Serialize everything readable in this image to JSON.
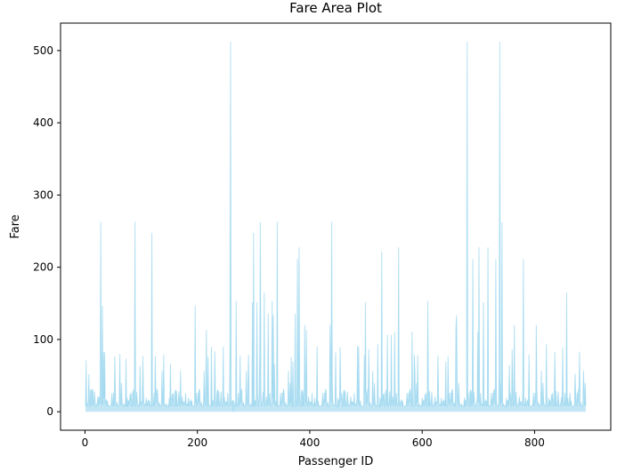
{
  "chart_data": {
    "type": "area",
    "title": "Fare Area Plot",
    "xlabel": "Passenger ID",
    "ylabel": "Fare",
    "xlim": [
      -43.5,
      935.5
    ],
    "ylim": [
      -25.6,
      538.0
    ],
    "xticks": [
      0,
      200,
      400,
      600,
      800
    ],
    "yticks": [
      0,
      100,
      200,
      300,
      400,
      500
    ],
    "grid": false,
    "legend": "none",
    "fill_color": "#87CEEB",
    "fill_opacity": 0.5,
    "x_range": [
      1,
      891
    ],
    "peaks": [
      {
        "x": 1,
        "y": 7.25
      },
      {
        "x": 2,
        "y": 71.28
      },
      {
        "x": 5,
        "y": 8.05
      },
      {
        "x": 7,
        "y": 51.86
      },
      {
        "x": 10,
        "y": 30.07
      },
      {
        "x": 14,
        "y": 31.28
      },
      {
        "x": 20,
        "y": 7.23
      },
      {
        "x": 25,
        "y": 21.08
      },
      {
        "x": 28,
        "y": 263.0
      },
      {
        "x": 31,
        "y": 146.52
      },
      {
        "x": 33,
        "y": 82.17
      },
      {
        "x": 35,
        "y": 82.17
      },
      {
        "x": 43,
        "y": 7.9
      },
      {
        "x": 52,
        "y": 7.8
      },
      {
        "x": 53,
        "y": 76.73
      },
      {
        "x": 62,
        "y": 80.0
      },
      {
        "x": 73,
        "y": 73.5
      },
      {
        "x": 89,
        "y": 263.0
      },
      {
        "x": 98,
        "y": 63.36
      },
      {
        "x": 103,
        "y": 77.29
      },
      {
        "x": 119,
        "y": 247.52
      },
      {
        "x": 125,
        "y": 77.29
      },
      {
        "x": 140,
        "y": 79.2
      },
      {
        "x": 152,
        "y": 66.6
      },
      {
        "x": 170,
        "y": 56.5
      },
      {
        "x": 196,
        "y": 146.52
      },
      {
        "x": 216,
        "y": 113.28
      },
      {
        "x": 219,
        "y": 76.29
      },
      {
        "x": 225,
        "y": 90.0
      },
      {
        "x": 231,
        "y": 83.47
      },
      {
        "x": 246,
        "y": 90.0
      },
      {
        "x": 258,
        "y": 86.5
      },
      {
        "x": 259,
        "y": 512.33
      },
      {
        "x": 264,
        "y": 0.0
      },
      {
        "x": 269,
        "y": 153.46
      },
      {
        "x": 276,
        "y": 77.96
      },
      {
        "x": 291,
        "y": 78.85
      },
      {
        "x": 298,
        "y": 151.55
      },
      {
        "x": 300,
        "y": 247.52
      },
      {
        "x": 306,
        "y": 151.55
      },
      {
        "x": 311,
        "y": 83.16
      },
      {
        "x": 312,
        "y": 262.38
      },
      {
        "x": 319,
        "y": 164.87
      },
      {
        "x": 326,
        "y": 135.63
      },
      {
        "x": 333,
        "y": 153.46
      },
      {
        "x": 335,
        "y": 133.65
      },
      {
        "x": 337,
        "y": 66.6
      },
      {
        "x": 342,
        "y": 263.0
      },
      {
        "x": 367,
        "y": 75.25
      },
      {
        "x": 370,
        "y": 69.3
      },
      {
        "x": 374,
        "y": 135.63
      },
      {
        "x": 378,
        "y": 211.5
      },
      {
        "x": 381,
        "y": 227.53
      },
      {
        "x": 391,
        "y": 120.0
      },
      {
        "x": 394,
        "y": 113.28
      },
      {
        "x": 413,
        "y": 90.0
      },
      {
        "x": 436,
        "y": 120.0
      },
      {
        "x": 439,
        "y": 263.0
      },
      {
        "x": 446,
        "y": 81.86
      },
      {
        "x": 454,
        "y": 89.1
      },
      {
        "x": 485,
        "y": 91.08
      },
      {
        "x": 487,
        "y": 90.0
      },
      {
        "x": 497,
        "y": 78.27
      },
      {
        "x": 499,
        "y": 151.55
      },
      {
        "x": 505,
        "y": 86.5
      },
      {
        "x": 521,
        "y": 93.5
      },
      {
        "x": 528,
        "y": 221.78
      },
      {
        "x": 538,
        "y": 106.43
      },
      {
        "x": 545,
        "y": 106.43
      },
      {
        "x": 551,
        "y": 110.88
      },
      {
        "x": 558,
        "y": 227.53
      },
      {
        "x": 582,
        "y": 110.88
      },
      {
        "x": 586,
        "y": 79.65
      },
      {
        "x": 592,
        "y": 78.27
      },
      {
        "x": 610,
        "y": 153.46
      },
      {
        "x": 628,
        "y": 77.96
      },
      {
        "x": 642,
        "y": 69.3
      },
      {
        "x": 646,
        "y": 76.73
      },
      {
        "x": 660,
        "y": 113.28
      },
      {
        "x": 661,
        "y": 133.65
      },
      {
        "x": 680,
        "y": 512.33
      },
      {
        "x": 690,
        "y": 211.34
      },
      {
        "x": 699,
        "y": 110.88
      },
      {
        "x": 701,
        "y": 227.53
      },
      {
        "x": 709,
        "y": 151.55
      },
      {
        "x": 717,
        "y": 227.53
      },
      {
        "x": 731,
        "y": 211.34
      },
      {
        "x": 738,
        "y": 512.33
      },
      {
        "x": 742,
        "y": 262.38
      },
      {
        "x": 755,
        "y": 65.0
      },
      {
        "x": 760,
        "y": 86.5
      },
      {
        "x": 764,
        "y": 120.0
      },
      {
        "x": 780,
        "y": 211.34
      },
      {
        "x": 790,
        "y": 79.2
      },
      {
        "x": 803,
        "y": 120.0
      },
      {
        "x": 821,
        "y": 93.5
      },
      {
        "x": 836,
        "y": 83.16
      },
      {
        "x": 850,
        "y": 89.1
      },
      {
        "x": 857,
        "y": 164.87
      },
      {
        "x": 863,
        "y": 25.93
      },
      {
        "x": 872,
        "y": 52.55
      },
      {
        "x": 880,
        "y": 83.16
      },
      {
        "x": 888,
        "y": 30.0
      },
      {
        "x": 891,
        "y": 7.75
      }
    ],
    "baseline_fares": [
      7.25,
      7.75,
      7.9,
      8.05,
      13.0,
      26.0,
      10.5,
      15.5,
      7.23,
      9.5,
      13.0,
      21.0,
      8.66,
      7.85,
      14.45,
      7.9,
      26.55,
      27.72,
      7.75,
      39.69,
      8.05,
      16.1,
      7.88,
      30.5,
      12.35,
      7.9,
      13.0,
      10.5,
      7.75,
      24.15,
      8.05,
      31.39,
      7.22,
      13.86,
      9.35,
      7.05,
      15.25,
      12.47,
      29.0,
      7.13,
      11.5,
      7.8,
      19.5,
      8.05,
      26.0,
      7.92,
      10.46,
      56.5,
      8.66,
      7.75
    ]
  }
}
